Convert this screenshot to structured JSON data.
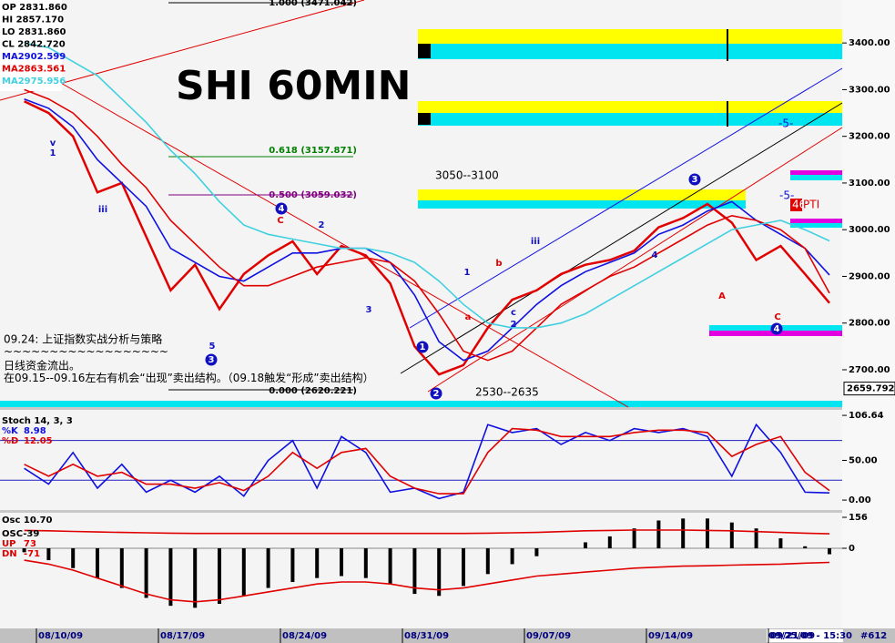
{
  "chart_data": [
    {
      "type": "line",
      "title": "SHI 60MIN",
      "categories": [
        null,
        "08/10/09",
        null,
        null,
        null,
        null,
        "08/17/09",
        null,
        null,
        null,
        null,
        "08/24/09",
        null,
        null,
        null,
        null,
        "08/31/09",
        null,
        null,
        null,
        null,
        "09/07/09",
        null,
        null,
        null,
        null,
        "09/14/09",
        null,
        null,
        null,
        null,
        "09/21/09",
        null,
        null
      ],
      "series": [
        {
          "color": "#e00000",
          "values": [
            3275,
            3250,
            3200,
            3080,
            3100,
            2985,
            2870,
            2925,
            2830,
            2905,
            2945,
            2975,
            2905,
            2965,
            2945,
            2885,
            2750,
            2690,
            2710,
            2790,
            2850,
            2870,
            2905,
            2925,
            2935,
            2955,
            3005,
            3025,
            3055,
            3015,
            2935,
            2965,
            2905,
            2843
          ]
        },
        {
          "color": "#1010e0",
          "values": [
            3280,
            3260,
            3220,
            3150,
            3100,
            3050,
            2960,
            2930,
            2900,
            2890,
            2920,
            2950,
            2950,
            2960,
            2960,
            2930,
            2860,
            2760,
            2720,
            2740,
            2790,
            2840,
            2880,
            2910,
            2930,
            2950,
            2990,
            3010,
            3040,
            3060,
            3020,
            2990,
            2960,
            2903
          ]
        },
        {
          "color": "#e00000",
          "values": [
            3300,
            3280,
            3250,
            3200,
            3140,
            3090,
            3020,
            2970,
            2920,
            2880,
            2880,
            2900,
            2920,
            2930,
            2940,
            2930,
            2890,
            2820,
            2740,
            2720,
            2740,
            2790,
            2840,
            2870,
            2900,
            2920,
            2950,
            2980,
            3010,
            3030,
            3020,
            3000,
            2960,
            2864
          ]
        },
        {
          "color": "#40d0e0",
          "values": [
            3400,
            3390,
            3360,
            3330,
            3280,
            3230,
            3170,
            3120,
            3060,
            3010,
            2990,
            2980,
            2970,
            2960,
            2960,
            2950,
            2930,
            2890,
            2840,
            2800,
            2790,
            2790,
            2800,
            2820,
            2850,
            2880,
            2910,
            2940,
            2970,
            3000,
            3010,
            3020,
            3000,
            2976
          ]
        }
      ],
      "ylim": [
        2620,
        3492
      ],
      "yticks": [
        {
          "value": 3400,
          "label": "3400.00"
        },
        {
          "value": 3300,
          "label": "3300.00"
        },
        {
          "value": 3200,
          "label": "3200.00"
        },
        {
          "value": 3100,
          "label": "3100.00"
        },
        {
          "value": 3000,
          "label": "3000.00"
        },
        {
          "value": 2900,
          "label": "2900.00"
        },
        {
          "value": 2800,
          "label": "2800.00"
        },
        {
          "value": 2700,
          "label": "2700.00"
        }
      ],
      "last_price": 2659.792
    },
    {
      "type": "line",
      "title": "Stoch 14, 3, 3",
      "series": [
        {
          "name": "%K",
          "readout": 8.98,
          "color": "#1010e0",
          "values": [
            40,
            20,
            60,
            15,
            45,
            10,
            25,
            10,
            30,
            5,
            50,
            75,
            15,
            80,
            60,
            10,
            15,
            2,
            10,
            95,
            85,
            90,
            70,
            85,
            75,
            90,
            85,
            90,
            80,
            30,
            95,
            60,
            10,
            9
          ]
        },
        {
          "name": "%D",
          "readout": 12.05,
          "color": "#e00000",
          "values": [
            45,
            30,
            45,
            30,
            35,
            20,
            20,
            15,
            22,
            12,
            30,
            60,
            40,
            60,
            65,
            30,
            15,
            8,
            8,
            60,
            90,
            88,
            80,
            80,
            80,
            85,
            88,
            88,
            85,
            55,
            70,
            80,
            35,
            12
          ]
        }
      ],
      "ylim": [
        -12.5,
        113.6
      ],
      "yticks": [
        106.64,
        {
          "value": 50,
          "label": "50.00"
        },
        {
          "value": 0,
          "label": "0.00"
        }
      ],
      "levels": [
        75,
        25
      ]
    },
    {
      "type": "bar",
      "title": "Osc 10.70",
      "series": [
        {
          "name": "OSC-39",
          "color": "#000000",
          "values": [
            -20,
            -60,
            -100,
            -150,
            -200,
            -250,
            -290,
            -300,
            -280,
            -240,
            -200,
            -170,
            -150,
            -140,
            -150,
            -180,
            -230,
            -240,
            -190,
            -130,
            -80,
            -40,
            0,
            30,
            60,
            100,
            140,
            150,
            150,
            130,
            100,
            50,
            10,
            -30
          ]
        },
        {
          "name": "UP",
          "readout": 73,
          "color": "#e00000",
          "type": "line",
          "values": [
            90,
            88,
            85,
            82,
            80,
            78,
            76,
            75,
            75,
            75,
            75,
            75,
            75,
            75,
            75,
            75,
            75,
            75,
            75,
            76,
            78,
            80,
            84,
            88,
            90,
            92,
            92,
            92,
            90,
            88,
            84,
            80,
            76,
            73
          ]
        },
        {
          "name": "DN",
          "readout": -71,
          "color": "#e00000",
          "type": "line",
          "values": [
            -60,
            -80,
            -110,
            -150,
            -190,
            -230,
            -260,
            -270,
            -260,
            -240,
            -220,
            -200,
            -180,
            -170,
            -170,
            -180,
            -200,
            -210,
            -200,
            -180,
            -160,
            -140,
            -130,
            -120,
            -110,
            -100,
            -95,
            -90,
            -88,
            -85,
            -82,
            -80,
            -75,
            -71
          ]
        }
      ],
      "ylim": [
        -404,
        179
      ],
      "yticks": [
        156,
        0
      ]
    }
  ],
  "info": [
    "OP 2831.860",
    "HI 2857.170",
    "LO 2831.860",
    "CL 2842.720",
    "MA2902.599",
    "MA2863.561",
    "MA2975.956"
  ],
  "annotations": [
    "1.000 (3471.042)",
    "0.618 (3157.871)",
    "0.500 (3059.032)",
    "0.000 (2620.221)",
    "3050--3100",
    "2530--2635",
    "46",
    "PTI",
    "-5-",
    "-5-"
  ],
  "notes": [
    "09.24: 上证指数实战分析与策略",
    "~~~~~~~~~~~~~~~~~~",
    "日线资金流出。",
    "在09.15--09.16左右有机会“出现”卖出结构。（09.18触发“形成”卖出结构）"
  ],
  "wave_labels": [
    "3",
    "4",
    "1",
    "2",
    "3",
    "4",
    "C",
    "2",
    "A",
    "C",
    "b",
    "1",
    "3",
    "iii",
    "v",
    "1",
    "iii",
    "5",
    "a",
    "c",
    "2",
    "4"
  ],
  "status_bar": {
    "time": "09/25/09 - 15:30",
    "count": "#612"
  }
}
